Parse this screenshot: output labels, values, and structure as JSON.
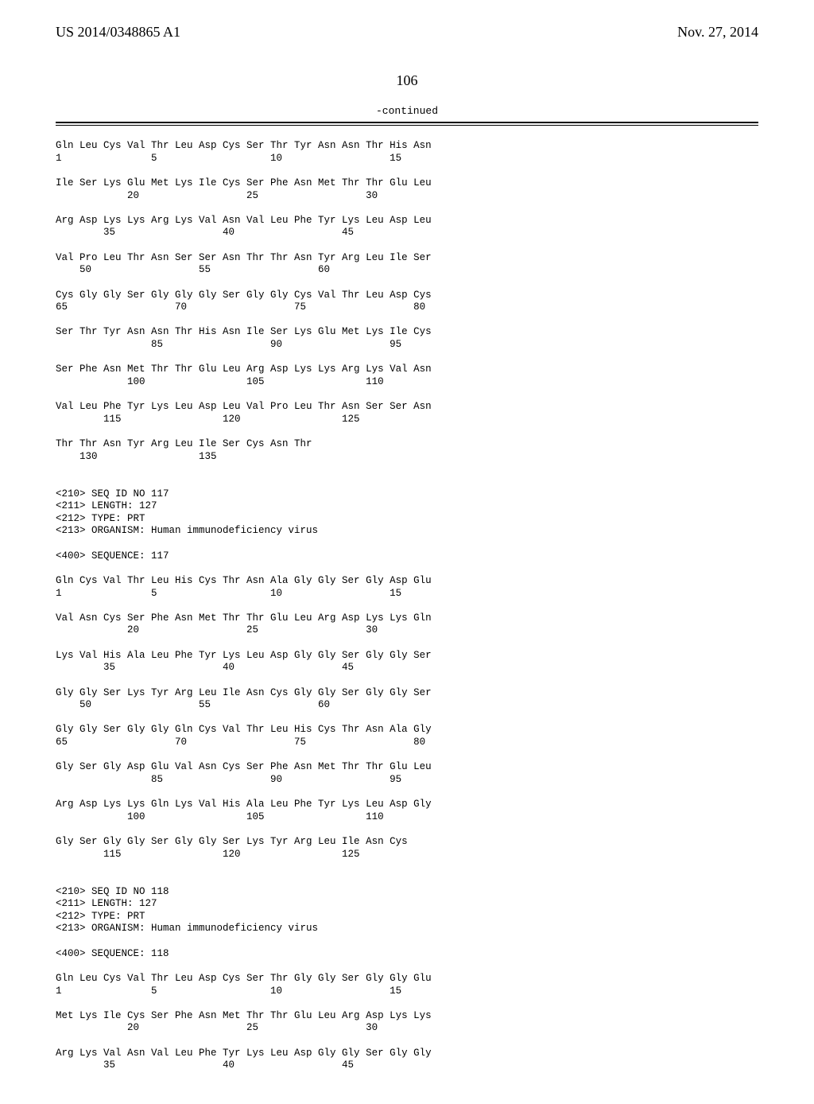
{
  "header": {
    "left": "US 2014/0348865 A1",
    "right": "Nov. 27, 2014"
  },
  "page_number": "106",
  "continued": "-continued",
  "content": "Gln Leu Cys Val Thr Leu Asp Cys Ser Thr Tyr Asn Asn Thr His Asn\n1               5                   10                  15\n\nIle Ser Lys Glu Met Lys Ile Cys Ser Phe Asn Met Thr Thr Glu Leu\n            20                  25                  30\n\nArg Asp Lys Lys Arg Lys Val Asn Val Leu Phe Tyr Lys Leu Asp Leu\n        35                  40                  45\n\nVal Pro Leu Thr Asn Ser Ser Asn Thr Thr Asn Tyr Arg Leu Ile Ser\n    50                  55                  60\n\nCys Gly Gly Ser Gly Gly Gly Ser Gly Gly Cys Val Thr Leu Asp Cys\n65                  70                  75                  80\n\nSer Thr Tyr Asn Asn Thr His Asn Ile Ser Lys Glu Met Lys Ile Cys\n                85                  90                  95\n\nSer Phe Asn Met Thr Thr Glu Leu Arg Asp Lys Lys Arg Lys Val Asn\n            100                 105                 110\n\nVal Leu Phe Tyr Lys Leu Asp Leu Val Pro Leu Thr Asn Ser Ser Asn\n        115                 120                 125\n\nThr Thr Asn Tyr Arg Leu Ile Ser Cys Asn Thr\n    130                 135\n\n\n<210> SEQ ID NO 117\n<211> LENGTH: 127\n<212> TYPE: PRT\n<213> ORGANISM: Human immunodeficiency virus\n\n<400> SEQUENCE: 117\n\nGln Cys Val Thr Leu His Cys Thr Asn Ala Gly Gly Ser Gly Asp Glu\n1               5                   10                  15\n\nVal Asn Cys Ser Phe Asn Met Thr Thr Glu Leu Arg Asp Lys Lys Gln\n            20                  25                  30\n\nLys Val His Ala Leu Phe Tyr Lys Leu Asp Gly Gly Ser Gly Gly Ser\n        35                  40                  45\n\nGly Gly Ser Lys Tyr Arg Leu Ile Asn Cys Gly Gly Ser Gly Gly Ser\n    50                  55                  60\n\nGly Gly Ser Gly Gly Gln Cys Val Thr Leu His Cys Thr Asn Ala Gly\n65                  70                  75                  80\n\nGly Ser Gly Asp Glu Val Asn Cys Ser Phe Asn Met Thr Thr Glu Leu\n                85                  90                  95\n\nArg Asp Lys Lys Gln Lys Val His Ala Leu Phe Tyr Lys Leu Asp Gly\n            100                 105                 110\n\nGly Ser Gly Gly Ser Gly Gly Ser Lys Tyr Arg Leu Ile Asn Cys\n        115                 120                 125\n\n\n<210> SEQ ID NO 118\n<211> LENGTH: 127\n<212> TYPE: PRT\n<213> ORGANISM: Human immunodeficiency virus\n\n<400> SEQUENCE: 118\n\nGln Leu Cys Val Thr Leu Asp Cys Ser Thr Gly Gly Ser Gly Gly Glu\n1               5                   10                  15\n\nMet Lys Ile Cys Ser Phe Asn Met Thr Thr Glu Leu Arg Asp Lys Lys\n            20                  25                  30\n\nArg Lys Val Asn Val Leu Phe Tyr Lys Leu Asp Gly Gly Ser Gly Gly\n        35                  40                  45"
}
